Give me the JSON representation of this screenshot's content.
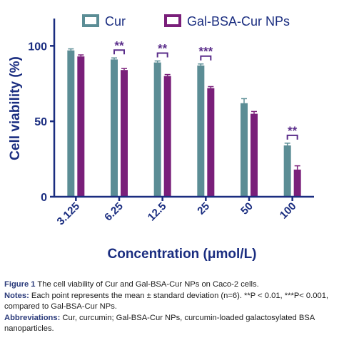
{
  "chart_data": {
    "type": "bar",
    "xlabel": "Concentration (μmol/L)",
    "ylabel": "Cell viability (%)",
    "ylim": [
      0,
      120
    ],
    "yticks": [
      0,
      50,
      100
    ],
    "categories": [
      "3.125",
      "6.25",
      "12.5",
      "25",
      "50",
      "100"
    ],
    "series": [
      {
        "name": "Cur",
        "values": [
          97,
          91,
          89,
          87,
          62,
          34
        ],
        "errors": [
          1,
          1,
          1,
          1,
          3,
          1.5
        ]
      },
      {
        "name": "Gal-BSA-Cur NPs",
        "values": [
          93,
          84,
          80,
          72,
          55,
          18
        ],
        "errors": [
          1,
          1,
          1,
          1,
          1.5,
          2.5
        ]
      }
    ],
    "significance": [
      {
        "category": "6.25",
        "label": "**"
      },
      {
        "category": "12.5",
        "label": "**"
      },
      {
        "category": "25",
        "label": "***"
      },
      {
        "category": "100",
        "label": "**"
      }
    ],
    "legend_position": "top",
    "colors": {
      "cur": "#5b8d95",
      "gal": "#7a1f7a",
      "axis": "#1a2d80",
      "sig": "#5a2d8a"
    }
  },
  "caption": {
    "figure_label": "Figure 1",
    "figure_text": " The cell viability of Cur and Gal-BSA-Cur NPs on Caco-2 cells.",
    "notes_label": "Notes:",
    "notes_text": " Each point represents the mean ± standard deviation (n=6). **P < 0.01, ***P< 0.001, compared to Gal-BSA-Cur NPs.",
    "abbrev_label": "Abbreviations:",
    "abbrev_text": " Cur, curcumin; Gal-BSA-Cur NPs, curcumin-loaded galactosylated BSA nanoparticles."
  }
}
